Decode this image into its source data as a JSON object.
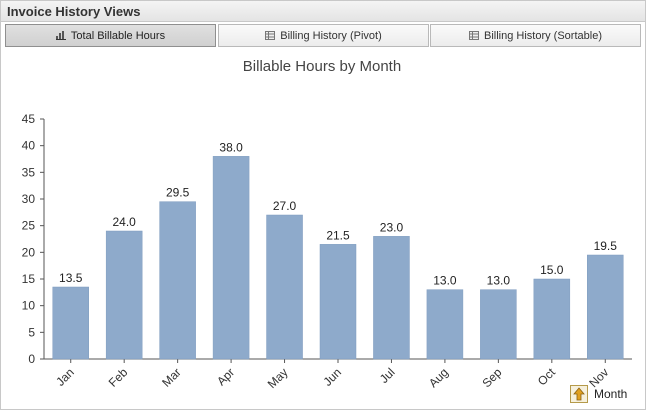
{
  "window": {
    "title": "Invoice History Views"
  },
  "tabs": [
    {
      "label": "Total Billable Hours",
      "icon": "bar-chart-icon",
      "active": true
    },
    {
      "label": "Billing History (Pivot)",
      "icon": "table-grid-icon",
      "active": false
    },
    {
      "label": "Billing History (Sortable)",
      "icon": "table-grid-icon",
      "active": false
    }
  ],
  "sort_control": {
    "icon": "sort-arrow-icon",
    "label": "Month"
  },
  "colors": {
    "bar": "#8eaacb",
    "bar_stroke": "#7f9cbf",
    "axis": "#555555"
  },
  "chart_data": {
    "type": "bar",
    "title": "Billable Hours by Month",
    "xlabel": "",
    "ylabel": "",
    "categories": [
      "Jan",
      "Feb",
      "Mar",
      "Apr",
      "May",
      "Jun",
      "Jul",
      "Aug",
      "Sep",
      "Oct",
      "Nov"
    ],
    "values": [
      13.5,
      24.0,
      29.5,
      38.0,
      27.0,
      21.5,
      23.0,
      13.0,
      13.0,
      15.0,
      19.5
    ],
    "value_labels": [
      "13.5",
      "24.0",
      "29.5",
      "38.0",
      "27.0",
      "21.5",
      "23.0",
      "13.0",
      "13.0",
      "15.0",
      "19.5"
    ],
    "ylim": [
      0,
      45
    ],
    "yticks": [
      0,
      5,
      10,
      15,
      20,
      25,
      30,
      35,
      40,
      45
    ],
    "grid": false,
    "legend": "none"
  }
}
